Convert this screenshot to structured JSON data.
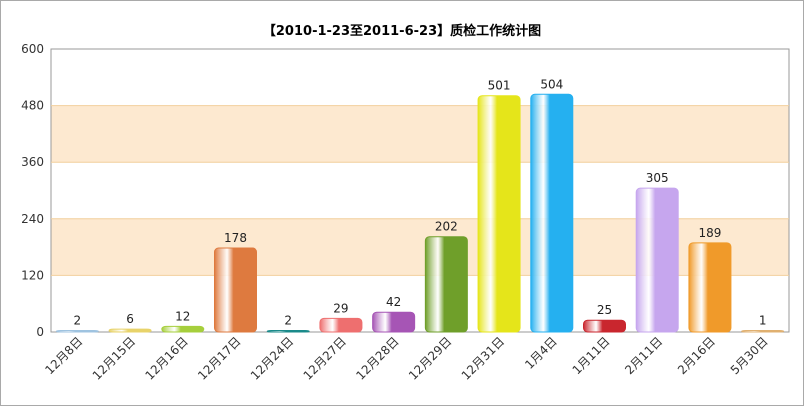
{
  "chart_data": {
    "type": "bar",
    "title": "【2010-1-23至2011-6-23】质检工作统计图",
    "xlabel": "",
    "ylabel": "",
    "ylim": [
      0,
      600
    ],
    "yticks": [
      "0",
      "120",
      "240",
      "360",
      "480",
      "600"
    ],
    "grid": true,
    "categories": [
      "12月8日",
      "12月15日",
      "12月16日",
      "12月17日",
      "12月24日",
      "12月27日",
      "12月28日",
      "12月29日",
      "12月31日",
      "1月4日",
      "1月11日",
      "2月11日",
      "2月16日",
      "5月30日"
    ],
    "values": [
      2,
      6,
      12,
      178,
      2,
      29,
      42,
      202,
      501,
      504,
      25,
      305,
      189,
      1
    ],
    "value_labels": [
      "2",
      "6",
      "12",
      "178",
      "2",
      "29",
      "42",
      "202",
      "501",
      "504",
      "25",
      "305",
      "189",
      "1"
    ],
    "colors": [
      "#9fc3e0",
      "#e8d36a",
      "#a6cf3c",
      "#de7a3f",
      "#1a8a8a",
      "#ee6f6f",
      "#a655b5",
      "#6f9f2a",
      "#e5e51a",
      "#25b0f0",
      "#c9262e",
      "#c6a6ee",
      "#f09a2a",
      "#e0b070"
    ],
    "band_color": "#fde9d0",
    "grid_color": "#f2cf9c"
  }
}
